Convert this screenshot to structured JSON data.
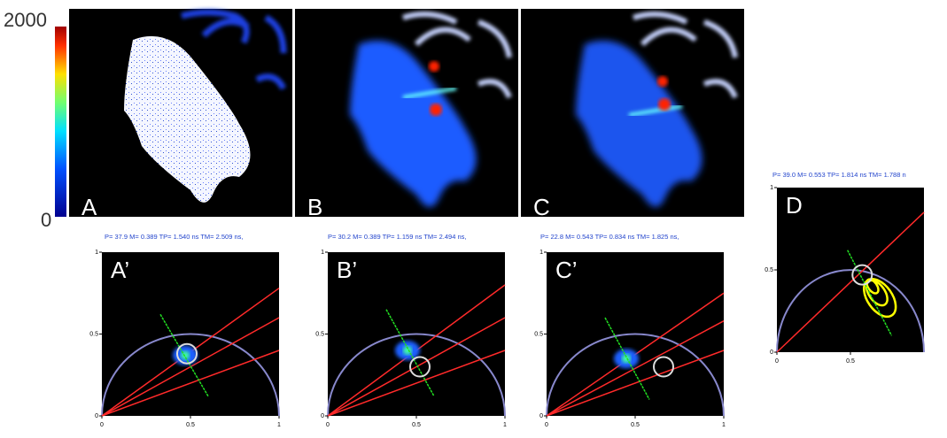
{
  "colorbar": {
    "max": "2000",
    "min": "0"
  },
  "images": [
    {
      "label": "A"
    },
    {
      "label": "B"
    },
    {
      "label": "C"
    }
  ],
  "phasors": [
    {
      "label": "A’",
      "header": "P= 37.9 M= 0.389 TP= 1.540 ns TM= 2.509 ns,",
      "xticks": [
        0,
        0.5,
        1
      ],
      "yticks": [
        0,
        0.5,
        1
      ]
    },
    {
      "label": "B’",
      "header": "P= 30.2 M= 0.389 TP= 1.159 ns TM= 2.494 ns,",
      "xticks": [
        0,
        0.5,
        1
      ],
      "yticks": [
        0,
        0.5,
        1
      ]
    },
    {
      "label": "C’",
      "header": "P= 22.8 M= 0.543 TP= 0.834 ns TM= 1.825 ns,",
      "xticks": [
        0,
        0.5,
        1
      ],
      "yticks": [
        0,
        0.5,
        1
      ]
    },
    {
      "label": "D",
      "header": "P= 39.0 M= 0.553 TP= 1.814 ns TM= 1.788 n",
      "xticks": [
        0,
        0.5
      ],
      "yticks": [
        0,
        0.5,
        1
      ]
    }
  ]
}
